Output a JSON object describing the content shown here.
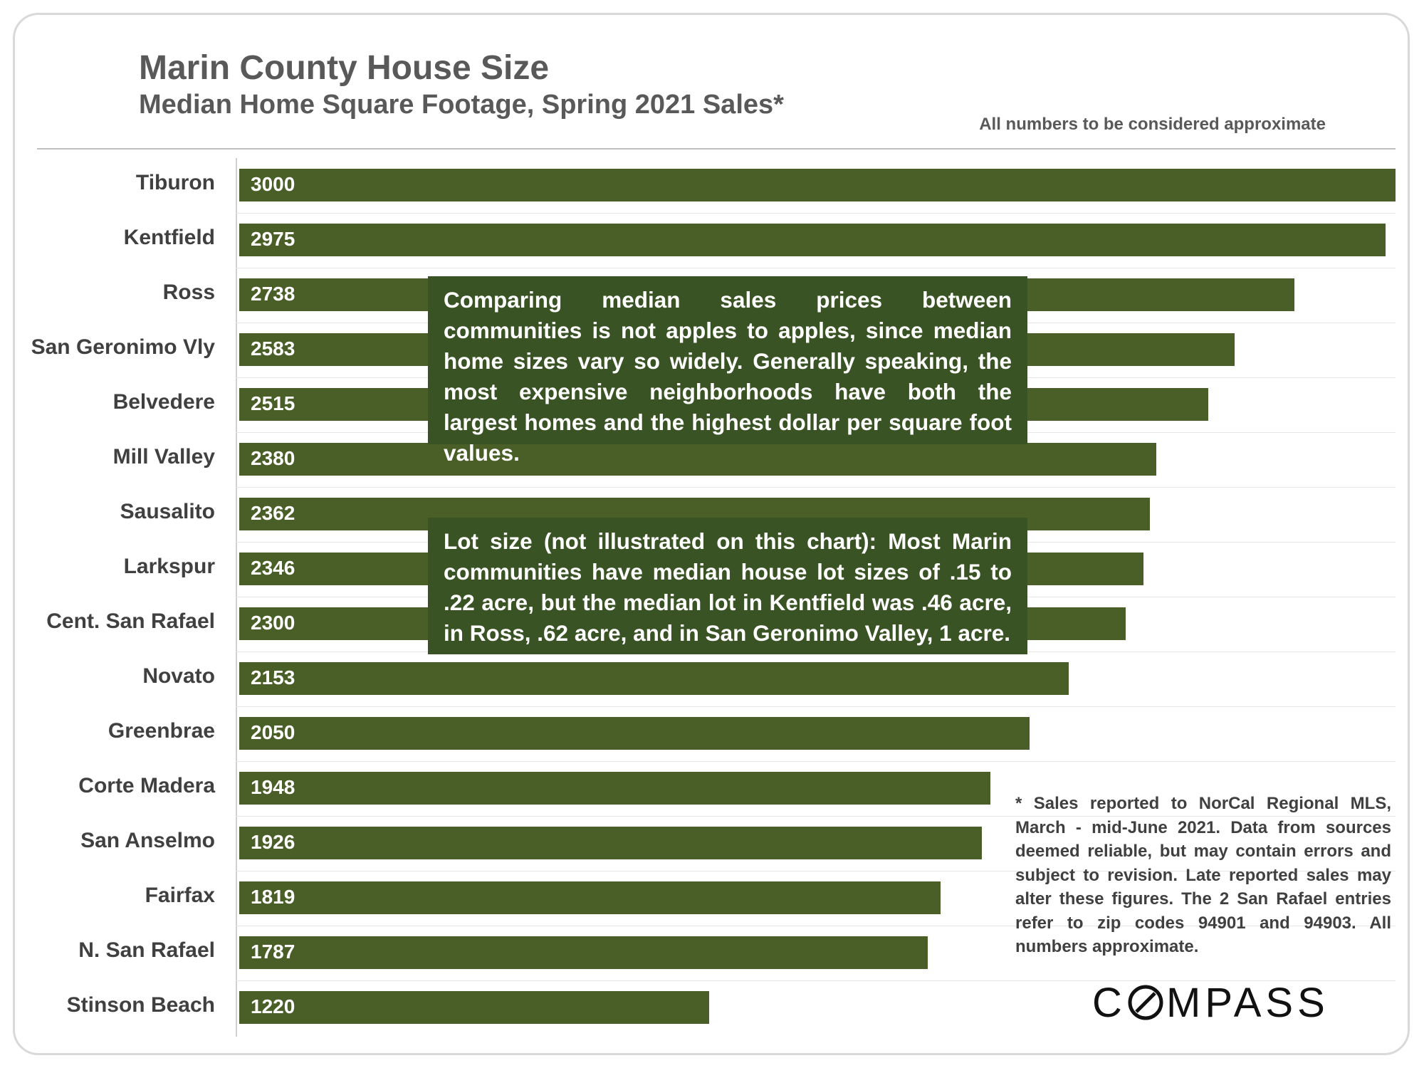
{
  "title": "Marin County House Size",
  "subtitle": "Median Home Square Footage, Spring 2021 Sales*",
  "disclaimer": "All numbers to be considered approximate",
  "note_prices": "Comparing median sales prices between communities is not apples to apples, since median home sizes vary so widely. Generally speaking, the most expensive neighborhoods have both the largest homes and the highest dollar per square foot values.",
  "note_lot": "Lot size (not illustrated on this chart):  Most Marin communities have median house lot sizes of .15 to .22 acre, but the median lot in Kentfield was .46 acre, in Ross, .62 acre, and in San Geronimo Valley, 1 acre.",
  "footnote": "* Sales reported to NorCal Regional MLS, March - mid-June 2021. Data from sources deemed reliable, but may contain errors and subject to revision. Late reported sales may alter these figures. The 2 San Rafael entries refer to zip codes 94901 and 94903. All numbers approximate.",
  "logo_text": "COMPASS",
  "colors": {
    "bar": "#4a5e27",
    "callout": "#3a5324",
    "text": "#404040"
  },
  "chart_data": {
    "type": "bar",
    "orientation": "horizontal",
    "title": "Marin County House Size",
    "subtitle": "Median Home Square Footage, Spring 2021 Sales*",
    "categories": [
      "Tiburon",
      "Kentfield",
      "Ross",
      "San Geronimo Vly",
      "Belvedere",
      "Mill Valley",
      "Sausalito",
      "Larkspur",
      "Cent. San Rafael",
      "Novato",
      "Greenbrae",
      "Corte Madera",
      "San Anselmo",
      "Fairfax",
      "N. San Rafael",
      "Stinson Beach"
    ],
    "values": [
      3000,
      2975,
      2738,
      2583,
      2515,
      2380,
      2362,
      2346,
      2300,
      2153,
      2050,
      1948,
      1926,
      1819,
      1787,
      1220
    ],
    "xlim": [
      0,
      3000
    ],
    "grid": false,
    "legend": false
  }
}
